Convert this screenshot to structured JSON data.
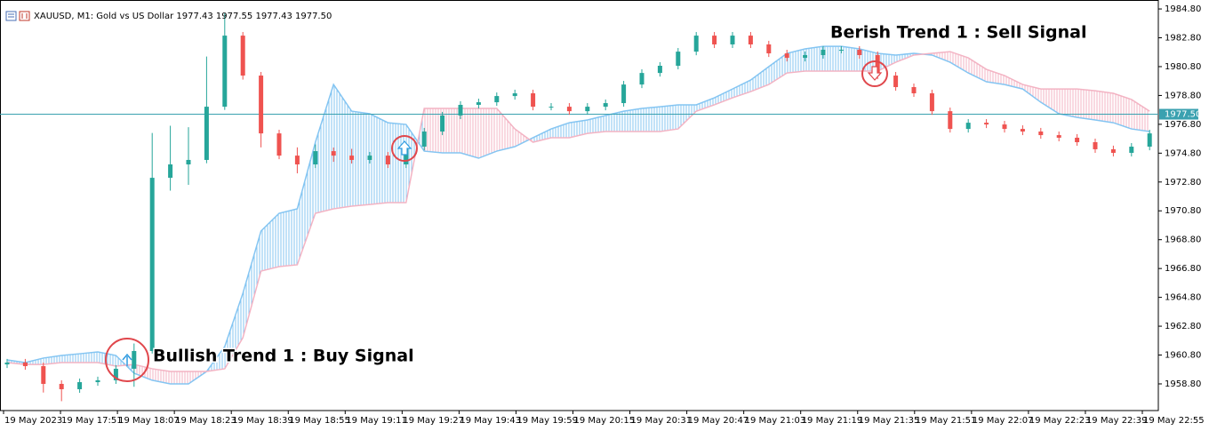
{
  "chart_data": {
    "type": "candlestick",
    "title": "XAUUSD, M1:  Gold vs US Dollar  1977.43 1977.55 1977.43 1977.50",
    "annotations": [
      "Bullish Trend 1 : Buy Signal",
      "Berish Trend 1 : Sell Signal"
    ],
    "up_color": "#26a69a",
    "down_color": "#ef5350",
    "open": [
      1960.15,
      1960.28,
      1960.03,
      1958.8,
      1958.43,
      1958.92,
      1959.05,
      1959.85,
      1961.08,
      1973.09,
      1974.02,
      1974.33,
      1978.02,
      1982.95,
      1980.18,
      1976.17,
      1974.63,
      1974.02,
      1974.94,
      1974.63,
      1974.33,
      1974.63,
      1974.02,
      1975.25,
      1976.3,
      1977.41,
      1978.15,
      1978.33,
      1978.76,
      1978.95,
      1978.02,
      1978.02,
      1977.71,
      1978.02,
      1978.27,
      1979.56,
      1980.36,
      1980.86,
      1981.84,
      1982.95,
      1982.34,
      1982.95,
      1982.34,
      1981.72,
      1981.41,
      1981.6,
      1981.97,
      1981.97,
      1981.6,
      1980.18,
      1979.38,
      1978.95,
      1977.71,
      1976.48,
      1976.91,
      1976.79,
      1976.48,
      1976.3,
      1976.05,
      1975.87,
      1975.56,
      1975.07,
      1974.82,
      1975.25
    ],
    "high": [
      1960.53,
      1960.53,
      1960.28,
      1959.05,
      1959.17,
      1959.3,
      1960.1,
      1961.6,
      1976.2,
      1976.7,
      1976.6,
      1981.5,
      1984.5,
      1983.2,
      1980.43,
      1976.42,
      1975.2,
      1975.4,
      1975.19,
      1975.1,
      1974.88,
      1974.88,
      1975.5,
      1976.55,
      1977.66,
      1978.4,
      1978.58,
      1979.01,
      1979.2,
      1979.2,
      1978.27,
      1978.27,
      1978.27,
      1978.52,
      1979.81,
      1980.61,
      1981.11,
      1982.09,
      1983.2,
      1983.2,
      1983.2,
      1983.2,
      1982.59,
      1981.97,
      1981.85,
      1982.22,
      1982.22,
      1982.22,
      1981.85,
      1980.43,
      1979.63,
      1979.2,
      1977.96,
      1977.16,
      1977.16,
      1977.04,
      1976.73,
      1976.55,
      1976.3,
      1976.12,
      1975.81,
      1975.32,
      1975.5,
      1976.42
    ],
    "low": [
      1959.9,
      1959.78,
      1958.2,
      1957.6,
      1958.18,
      1958.67,
      1958.8,
      1958.6,
      1960.9,
      1972.2,
      1972.6,
      1974.1,
      1977.8,
      1979.9,
      1975.2,
      1974.38,
      1973.4,
      1973.77,
      1974.2,
      1974.08,
      1974.08,
      1973.77,
      1973.77,
      1975.0,
      1976.05,
      1977.16,
      1977.9,
      1978.08,
      1978.51,
      1977.77,
      1977.77,
      1977.46,
      1977.46,
      1977.77,
      1978.02,
      1979.31,
      1980.11,
      1980.61,
      1981.59,
      1982.09,
      1982.09,
      1982.09,
      1981.47,
      1981.16,
      1981.16,
      1981.35,
      1981.72,
      1981.35,
      1979.93,
      1979.13,
      1978.7,
      1977.46,
      1976.23,
      1976.23,
      1976.54,
      1976.23,
      1976.05,
      1975.8,
      1975.62,
      1975.31,
      1974.82,
      1974.57,
      1974.57,
      1975.0
    ],
    "close": [
      1960.28,
      1960.03,
      1958.8,
      1958.43,
      1958.92,
      1959.05,
      1959.85,
      1961.08,
      1973.09,
      1974.02,
      1974.33,
      1978.02,
      1982.95,
      1980.18,
      1976.17,
      1974.63,
      1974.02,
      1974.94,
      1974.63,
      1974.33,
      1974.63,
      1974.02,
      1975.25,
      1976.3,
      1977.41,
      1978.15,
      1978.33,
      1978.76,
      1978.95,
      1978.02,
      1978.02,
      1977.71,
      1978.02,
      1978.27,
      1979.56,
      1980.36,
      1980.86,
      1981.84,
      1982.95,
      1982.34,
      1982.95,
      1982.34,
      1981.72,
      1981.41,
      1981.6,
      1981.97,
      1981.97,
      1981.6,
      1980.18,
      1979.38,
      1978.95,
      1977.71,
      1976.48,
      1976.91,
      1976.79,
      1976.48,
      1976.3,
      1976.05,
      1975.87,
      1975.56,
      1975.07,
      1974.82,
      1975.25,
      1976.17
    ],
    "span_a": {
      "color": "#84c5f2",
      "values": [
        1960.46,
        1960.28,
        1960.59,
        1960.77,
        1960.89,
        1961.02,
        1960.77,
        1959.54,
        1959.05,
        1958.8,
        1958.8,
        1959.66,
        1961.39,
        1965.08,
        1969.4,
        1970.63,
        1970.94,
        1975.56,
        1979.56,
        1977.71,
        1977.53,
        1976.91,
        1976.79,
        1974.94,
        1974.82,
        1974.82,
        1974.45,
        1974.94,
        1975.25,
        1975.87,
        1976.48,
        1976.91,
        1977.1,
        1977.41,
        1977.71,
        1977.9,
        1978.02,
        1978.15,
        1978.15,
        1978.64,
        1979.25,
        1979.87,
        1980.8,
        1981.72,
        1982.03,
        1982.21,
        1982.21,
        1982.03,
        1981.72,
        1981.6,
        1981.72,
        1981.6,
        1981.1,
        1980.36,
        1979.75,
        1979.56,
        1979.25,
        1978.33,
        1977.53,
        1977.28,
        1977.1,
        1976.91,
        1976.48,
        1976.3
      ]
    },
    "span_b": {
      "color": "#f3b3c3",
      "values": [
        1960.28,
        1960.15,
        1960.15,
        1960.28,
        1960.28,
        1960.28,
        1960.03,
        1960.15,
        1959.85,
        1959.66,
        1959.66,
        1959.66,
        1959.85,
        1962.0,
        1966.62,
        1966.93,
        1967.06,
        1970.63,
        1970.94,
        1971.12,
        1971.24,
        1971.37,
        1971.37,
        1977.9,
        1977.9,
        1977.9,
        1977.9,
        1977.9,
        1976.48,
        1975.56,
        1975.87,
        1975.87,
        1976.17,
        1976.3,
        1976.3,
        1976.3,
        1976.3,
        1976.48,
        1977.71,
        1978.15,
        1978.64,
        1979.07,
        1979.56,
        1980.36,
        1980.49,
        1980.49,
        1980.49,
        1980.49,
        1980.49,
        1981.1,
        1981.6,
        1981.72,
        1981.84,
        1981.41,
        1980.61,
        1980.18,
        1979.56,
        1979.25,
        1979.25,
        1979.25,
        1979.13,
        1978.95,
        1978.52,
        1977.71
      ]
    },
    "price_line": {
      "value": 1977.5,
      "label": "1977.50",
      "color": "#3aa1b0"
    },
    "ylim": [
      1956.95,
      1985.42
    ],
    "yticks": [
      {
        "value": 1984.8,
        "label": "1984.80"
      },
      {
        "value": 1982.8,
        "label": "1982.80"
      },
      {
        "value": 1980.8,
        "label": "1980.80"
      },
      {
        "value": 1978.8,
        "label": "1978.80"
      },
      {
        "value": 1976.8,
        "label": "1976.80"
      },
      {
        "value": 1974.8,
        "label": "1974.80"
      },
      {
        "value": 1972.8,
        "label": "1972.80"
      },
      {
        "value": 1970.8,
        "label": "1970.80"
      },
      {
        "value": 1968.8,
        "label": "1968.80"
      },
      {
        "value": 1966.8,
        "label": "1966.80"
      },
      {
        "value": 1964.8,
        "label": "1964.80"
      },
      {
        "value": 1962.8,
        "label": "1962.80"
      },
      {
        "value": 1960.8,
        "label": "1960.80"
      },
      {
        "value": 1958.8,
        "label": "1958.80"
      }
    ],
    "x_labels": [
      "19 May 2023",
      "19 May 17:51",
      "19 May 18:07",
      "19 May 18:23",
      "19 May 18:39",
      "19 May 18:55",
      "19 May 19:11",
      "19 May 19:27",
      "19 May 19:43",
      "19 May 19:59",
      "19 May 20:15",
      "19 May 20:31",
      "19 May 20:47",
      "19 May 21:03",
      "19 May 21:19",
      "19 May 21:35",
      "19 May 21:51",
      "19 May 22:07",
      "19 May 22:23",
      "19 May 22:39",
      "19 May 22:55"
    ]
  }
}
